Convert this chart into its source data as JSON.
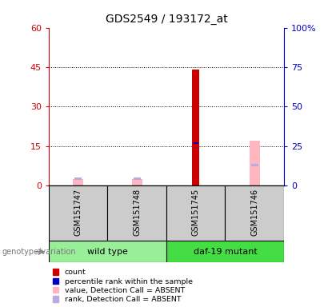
{
  "title": "GDS2549 / 193172_at",
  "samples": [
    "GSM151747",
    "GSM151748",
    "GSM151745",
    "GSM151746"
  ],
  "groups": [
    {
      "name": "wild type",
      "color": "#99EE99",
      "samples": [
        0,
        1
      ]
    },
    {
      "name": "daf-19 mutant",
      "color": "#44DD44",
      "samples": [
        2,
        3
      ]
    }
  ],
  "count": [
    null,
    null,
    44,
    null
  ],
  "percentile_rank_scaled": [
    null,
    null,
    27,
    null
  ],
  "value_absent": [
    2.5,
    2.5,
    null,
    17
  ],
  "rank_absent_scaled": [
    4.5,
    4.5,
    null,
    13
  ],
  "ylim_left": [
    0,
    60
  ],
  "ylim_right": [
    0,
    100
  ],
  "left_ticks": [
    0,
    15,
    30,
    45,
    60
  ],
  "right_ticks": [
    0,
    25,
    50,
    75,
    100
  ],
  "left_color": "#cc0000",
  "right_color": "#0000cc",
  "legend_items": [
    {
      "label": "count",
      "color": "#cc0000"
    },
    {
      "label": "percentile rank within the sample",
      "color": "#0000bb"
    },
    {
      "label": "value, Detection Call = ABSENT",
      "color": "#FFB6C1"
    },
    {
      "label": "rank, Detection Call = ABSENT",
      "color": "#BBAADD"
    }
  ],
  "genotype_label": "genotype/variation"
}
